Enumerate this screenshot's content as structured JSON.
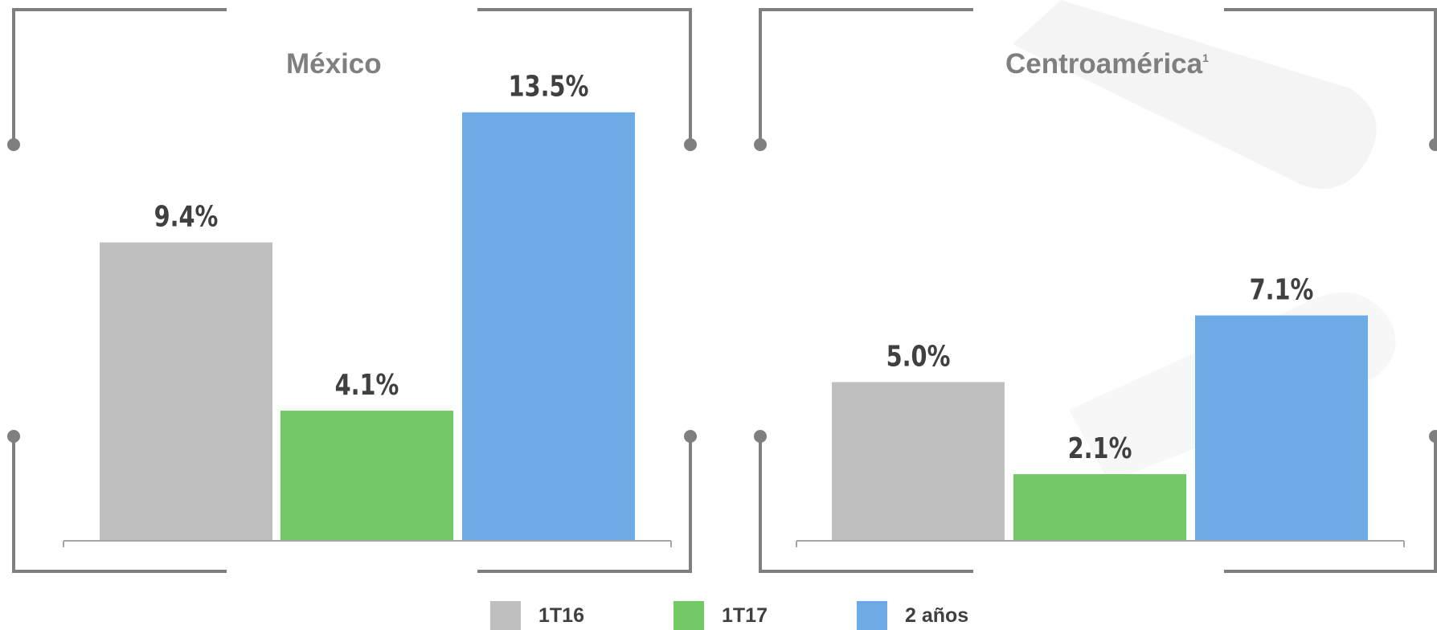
{
  "colors": {
    "frame": "#7f7f7f",
    "axis": "#a6a6a6",
    "label": "#404040",
    "title": "#7f7f7f",
    "watermark": "#f4f4f4"
  },
  "chart_data": [
    {
      "type": "bar",
      "title": "México",
      "title_sup": "",
      "categories": [
        "1T16",
        "1T17",
        "2 años"
      ],
      "values": [
        9.4,
        4.1,
        13.5
      ],
      "labels": [
        "9.4%",
        "4.1%",
        "13.5%"
      ],
      "colors": [
        "#bfbfbf",
        "#74c967",
        "#6daae6"
      ],
      "ylim": [
        0,
        15
      ]
    },
    {
      "type": "bar",
      "title": "Centroamérica",
      "title_sup": "1",
      "categories": [
        "1T16",
        "1T17",
        "2 años"
      ],
      "values": [
        5.0,
        2.1,
        7.1
      ],
      "labels": [
        "5.0%",
        "2.1%",
        "7.1%"
      ],
      "colors": [
        "#bfbfbf",
        "#74c967",
        "#6daae6"
      ],
      "ylim": [
        0,
        15
      ]
    }
  ],
  "legend": [
    {
      "label": "1T16",
      "color": "#bfbfbf"
    },
    {
      "label": "1T17",
      "color": "#74c967"
    },
    {
      "label": "2 años",
      "color": "#6daae6"
    }
  ]
}
